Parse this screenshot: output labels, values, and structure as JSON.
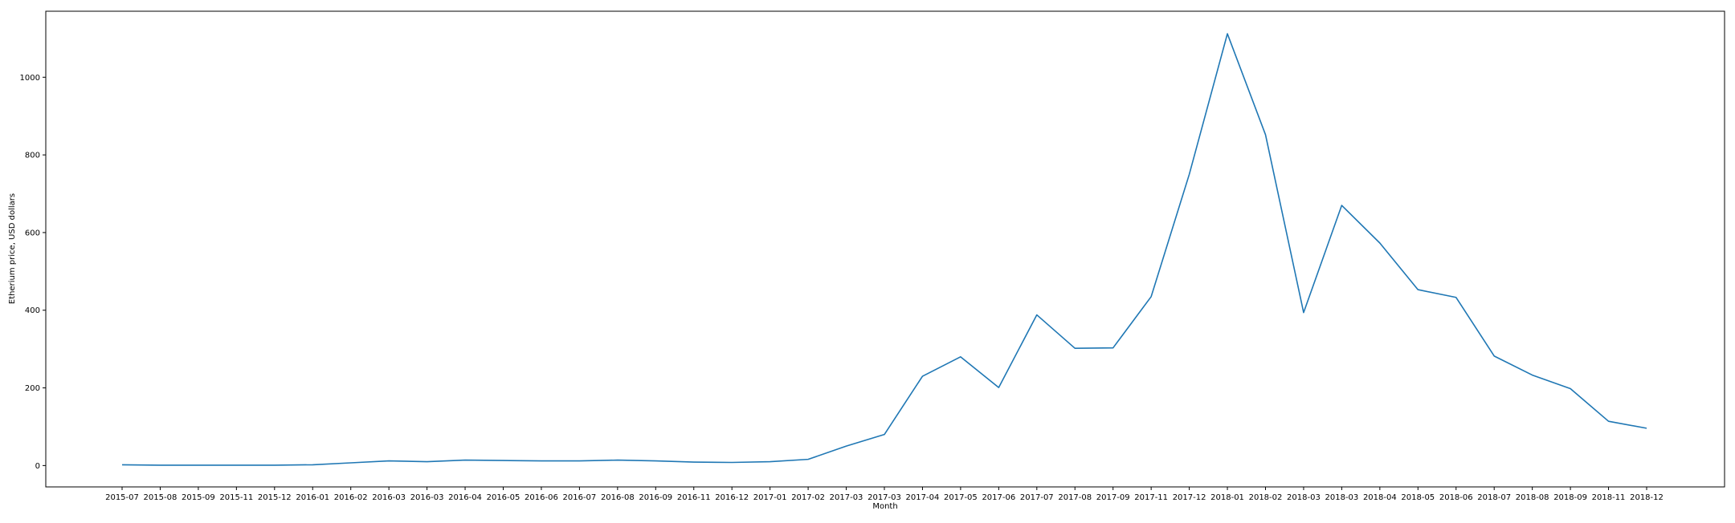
{
  "chart_data": {
    "type": "line",
    "title": "",
    "xlabel": "Month",
    "ylabel": "Etherium price, USD dollars",
    "ylim": [
      -55,
      1170
    ],
    "yticks": [
      0,
      200,
      400,
      600,
      800,
      1000
    ],
    "grid": false,
    "legend": "none",
    "line_color": "#1f77b4",
    "categories": [
      "2015-07",
      "2015-08",
      "2015-09",
      "2015-11",
      "2015-12",
      "2016-01",
      "2016-02",
      "2016-03",
      "2016-03",
      "2016-04",
      "2016-05",
      "2016-06",
      "2016-07",
      "2016-08",
      "2016-09",
      "2016-11",
      "2016-12",
      "2017-01",
      "2017-02",
      "2017-03",
      "2017-03",
      "2017-04",
      "2017-05",
      "2017-06",
      "2017-07",
      "2017-08",
      "2017-09",
      "2017-11",
      "2017-12",
      "2018-01",
      "2018-02",
      "2018-03",
      "2018-03",
      "2018-04",
      "2018-05",
      "2018-06",
      "2018-07",
      "2018-08",
      "2018-09",
      "2018-11",
      "2018-12"
    ],
    "series": [
      {
        "values": [
          2,
          1,
          1,
          1,
          1,
          2,
          7,
          12,
          10,
          14,
          13,
          12,
          12,
          14,
          12,
          9,
          8,
          10,
          16,
          50,
          80,
          230,
          280,
          201,
          388,
          302,
          303,
          435,
          750,
          1112,
          852,
          394,
          670,
          573,
          453,
          433,
          282,
          233,
          198,
          114,
          96
        ]
      }
    ]
  }
}
